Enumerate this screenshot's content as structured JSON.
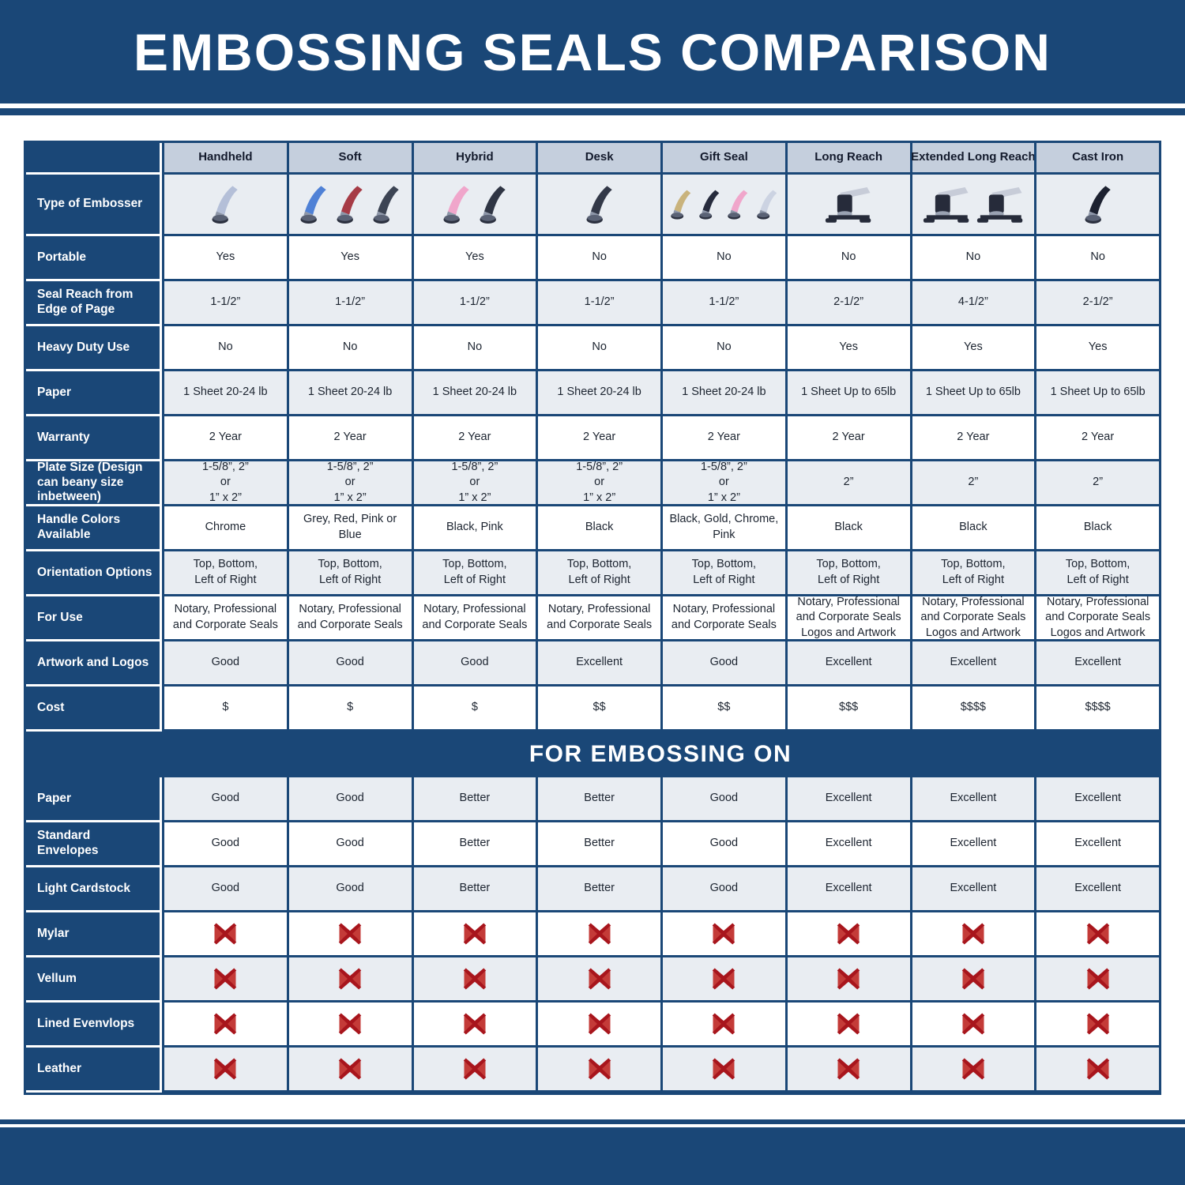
{
  "title": "EMBOSSING SEALS COMPARISON",
  "banner": "FOR EMBOSSING ON",
  "colors": {
    "navy": "#1a4777",
    "header_row_bg": "#c5cfdd",
    "alt_row_bg": "#e9edf2",
    "white_row_bg": "#ffffff",
    "x_dark_red": "#a8151c",
    "x_light_red": "#c43b38"
  },
  "columns": [
    "Handheld",
    "Soft",
    "Hybrid",
    "Desk",
    "Gift Seal",
    "Long Reach",
    "Extended Long Reach",
    "Cast Iron"
  ],
  "products": [
    {
      "column": "Handheld",
      "glyph": "hand",
      "handle_colors": [
        "#b4bfd8"
      ]
    },
    {
      "column": "Soft",
      "glyph": "hand",
      "handle_colors": [
        "#4f81d6",
        "#a63b46",
        "#3c4454"
      ]
    },
    {
      "column": "Hybrid",
      "glyph": "hand",
      "handle_colors": [
        "#f0a6cb",
        "#2f3544"
      ]
    },
    {
      "column": "Desk",
      "glyph": "hand",
      "handle_colors": [
        "#323848"
      ]
    },
    {
      "column": "Gift Seal",
      "glyph": "hand",
      "handle_colors": [
        "#c9b37c",
        "#262b3d",
        "#f0a6cb",
        "#ccd3e2"
      ]
    },
    {
      "column": "Long Reach",
      "glyph": "desk",
      "handle_colors": [
        "#262b3a"
      ]
    },
    {
      "column": "Extended Long Reach",
      "glyph": "desk",
      "handle_colors": [
        "#262b3a",
        "#262b3a"
      ]
    },
    {
      "column": "Cast Iron",
      "glyph": "hand",
      "handle_colors": [
        "#1c2130"
      ]
    }
  ],
  "rows": [
    {
      "label": "Type of Embosser",
      "kind": "images"
    },
    {
      "label": "Portable",
      "kind": "text",
      "values": [
        "Yes",
        "Yes",
        "Yes",
        "No",
        "No",
        "No",
        "No",
        "No"
      ]
    },
    {
      "label": "Seal Reach from Edge of Page",
      "kind": "text",
      "values": [
        "1-1/2”",
        "1-1/2”",
        "1-1/2”",
        "1-1/2”",
        "1-1/2”",
        "2-1/2”",
        "4-1/2”",
        "2-1/2”"
      ]
    },
    {
      "label": "Heavy Duty Use",
      "kind": "text",
      "values": [
        "No",
        "No",
        "No",
        "No",
        "No",
        "Yes",
        "Yes",
        "Yes"
      ]
    },
    {
      "label": "Paper",
      "kind": "text",
      "values": [
        "1 Sheet 20-24 lb",
        "1 Sheet 20-24 lb",
        "1 Sheet 20-24 lb",
        "1 Sheet 20-24 lb",
        "1 Sheet 20-24 lb",
        "1 Sheet Up to 65lb",
        "1 Sheet Up to 65lb",
        "1 Sheet Up to 65lb"
      ]
    },
    {
      "label": "Warranty",
      "kind": "text",
      "values": [
        "2 Year",
        "2 Year",
        "2 Year",
        "2 Year",
        "2 Year",
        "2 Year",
        "2 Year",
        "2 Year"
      ]
    },
    {
      "label": "Plate Size (Design can beany size inbetween)",
      "kind": "text",
      "values": [
        "1-5/8”, 2”\nor\n1” x 2”",
        "1-5/8”, 2”\nor\n1” x 2”",
        "1-5/8”, 2”\nor\n1” x 2”",
        "1-5/8”, 2”\nor\n1” x 2”",
        "1-5/8”, 2”\nor\n1” x 2”",
        "2”",
        "2”",
        "2”"
      ]
    },
    {
      "label": "Handle Colors Available",
      "kind": "text",
      "values": [
        "Chrome",
        "Grey, Red, Pink or Blue",
        "Black, Pink",
        "Black",
        "Black, Gold, Chrome, Pink",
        "Black",
        "Black",
        "Black"
      ]
    },
    {
      "label": "Orientation Options",
      "kind": "text",
      "values": [
        "Top, Bottom,\nLeft of Right",
        "Top, Bottom,\nLeft of Right",
        "Top, Bottom,\nLeft of Right",
        "Top, Bottom,\nLeft of Right",
        "Top, Bottom,\nLeft of Right",
        "Top, Bottom,\nLeft of Right",
        "Top, Bottom,\nLeft of Right",
        "Top, Bottom,\nLeft of Right"
      ]
    },
    {
      "label": "For Use",
      "kind": "text",
      "values": [
        "Notary, Professional\nand Corporate Seals",
        "Notary, Professional\nand Corporate Seals",
        "Notary, Professional\nand Corporate Seals",
        "Notary, Professional\nand Corporate Seals",
        "Notary, Professional\nand Corporate Seals",
        "Notary, Professional\nand Corporate Seals\nLogos and Artwork",
        "Notary, Professional\nand Corporate Seals\nLogos and Artwork",
        "Notary, Professional\nand Corporate Seals\nLogos and Artwork"
      ]
    },
    {
      "label": "Artwork and Logos",
      "kind": "text",
      "values": [
        "Good",
        "Good",
        "Good",
        "Excellent",
        "Good",
        "Excellent",
        "Excellent",
        "Excellent"
      ]
    },
    {
      "label": "Cost",
      "kind": "text",
      "values": [
        "$",
        "$",
        "$",
        "$$",
        "$$",
        "$$$",
        "$$$$",
        "$$$$"
      ]
    }
  ],
  "embossing_rows": [
    {
      "label": "Paper",
      "kind": "text",
      "values": [
        "Good",
        "Good",
        "Better",
        "Better",
        "Good",
        "Excellent",
        "Excellent",
        "Excellent"
      ]
    },
    {
      "label": "Standard Envelopes",
      "kind": "text",
      "values": [
        "Good",
        "Good",
        "Better",
        "Better",
        "Good",
        "Excellent",
        "Excellent",
        "Excellent"
      ]
    },
    {
      "label": "Light Cardstock",
      "kind": "text",
      "values": [
        "Good",
        "Good",
        "Better",
        "Better",
        "Good",
        "Excellent",
        "Excellent",
        "Excellent"
      ]
    },
    {
      "label": "Mylar",
      "kind": "x",
      "values": [
        "X",
        "X",
        "X",
        "X",
        "X",
        "X",
        "X",
        "X"
      ]
    },
    {
      "label": "Vellum",
      "kind": "x",
      "values": [
        "X",
        "X",
        "X",
        "X",
        "X",
        "X",
        "X",
        "X"
      ]
    },
    {
      "label": "Lined Evenvlops",
      "kind": "x",
      "values": [
        "X",
        "X",
        "X",
        "X",
        "X",
        "X",
        "X",
        "X"
      ]
    },
    {
      "label": "Leather",
      "kind": "x",
      "values": [
        "X",
        "X",
        "X",
        "X",
        "X",
        "X",
        "X",
        "X"
      ]
    }
  ]
}
